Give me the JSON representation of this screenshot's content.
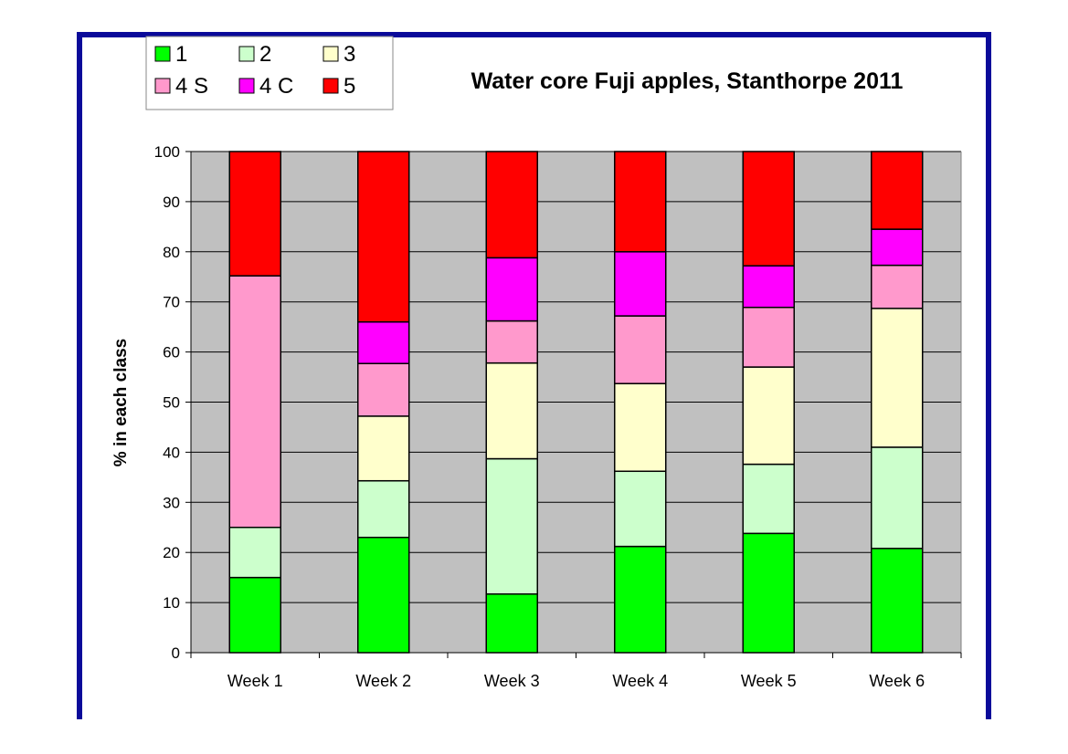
{
  "colors": {
    "frame": "#0a0a9a",
    "plot_bg": "#c0c0c0",
    "grid": "#000000"
  },
  "chart_data": {
    "type": "bar",
    "stacked": true,
    "title": "Water core Fuji apples, Stanthorpe 2011",
    "xlabel": "",
    "ylabel": "% in each class",
    "ylim": [
      0,
      100
    ],
    "yticks": [
      0,
      10,
      20,
      30,
      40,
      50,
      60,
      70,
      80,
      90,
      100
    ],
    "grid": true,
    "legend_position": "top-left",
    "categories": [
      "Week 1",
      "Week 2",
      "Week 3",
      "Week 4",
      "Week 5",
      "Week 6"
    ],
    "series": [
      {
        "name": "1",
        "color": "#00ff00",
        "values": [
          15,
          23,
          11.7,
          21.2,
          23.8,
          20.8
        ]
      },
      {
        "name": "2",
        "color": "#ccffcc",
        "values": [
          10,
          11.3,
          27,
          15,
          13.8,
          20.2
        ]
      },
      {
        "name": "3",
        "color": "#ffffcc",
        "values": [
          0,
          12.9,
          19.1,
          17.5,
          19.4,
          27.7
        ]
      },
      {
        "name": "4 S",
        "color": "#ff99cc",
        "values": [
          50.2,
          10.5,
          8.4,
          13.5,
          11.9,
          8.6
        ]
      },
      {
        "name": "4 C",
        "color": "#ff00ff",
        "values": [
          0,
          8.3,
          12.6,
          12.8,
          8.3,
          7.2
        ]
      },
      {
        "name": "5",
        "color": "#ff0000",
        "values": [
          24.8,
          34,
          21.2,
          20,
          22.8,
          15.5
        ]
      }
    ]
  }
}
